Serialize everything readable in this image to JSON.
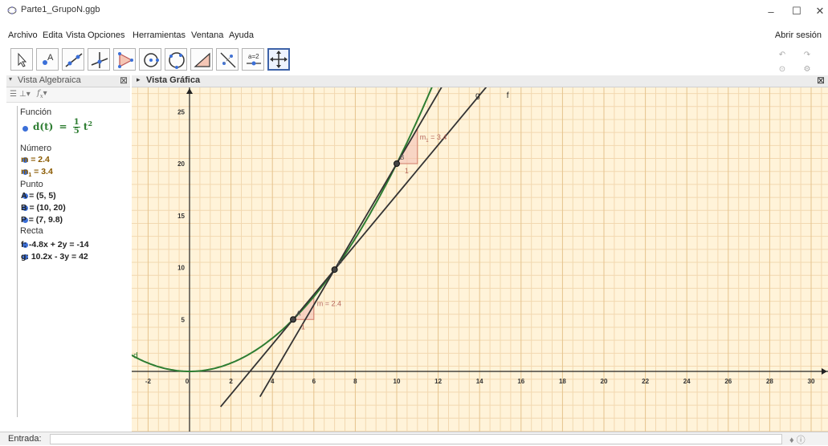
{
  "window": {
    "title": "Parte1_GrupoN.ggb",
    "minimize": "–",
    "maximize": "☐",
    "close": "✕"
  },
  "menu": {
    "items": [
      "Archivo",
      "Edita",
      "Vista",
      "Opciones",
      "Herramientas",
      "Ventana",
      "Ayuda"
    ],
    "signin": "Abrir sesión"
  },
  "toolbar": {
    "tools": [
      "move-tool",
      "point-tool",
      "line-tool",
      "perpendicular-tool",
      "polygon-tool",
      "circle-tool",
      "conic-tool",
      "angle-tool",
      "reflect-tool",
      "slider-tool",
      "move-graphics-tool"
    ],
    "slider_label": "a=2",
    "active_tool": "move-graphics-tool"
  },
  "algebra": {
    "title": "Vista Algebraica",
    "close": "⊠",
    "fx": "f",
    "fx_sub": "x",
    "categories": {
      "funcion": "Función",
      "numero": "Número",
      "punto": "Punto",
      "recta": "Recta"
    },
    "function": {
      "name": "d(t)",
      "eq": "=",
      "num": "1",
      "den": "5",
      "var": "t",
      "exp": "2"
    },
    "numbers": [
      {
        "text": "m = 2.4",
        "color": "#996600"
      },
      {
        "prefix": "m",
        "sub": "1",
        "suffix": " = 3.4",
        "color": "#996600"
      }
    ],
    "points": [
      "A = (5, 5)",
      "B = (10, 20)",
      "P = (7, 9.8)"
    ],
    "lines": [
      "f: -4.8x + 2y = -14",
      "g: 10.2x - 3y = 42"
    ]
  },
  "graphics": {
    "title": "Vista Gráfica",
    "close": "⊠",
    "x_ticks": [
      "-2",
      "0",
      "2",
      "4",
      "6",
      "8",
      "10",
      "12",
      "14",
      "16",
      "18",
      "20",
      "22",
      "24",
      "26",
      "28",
      "30"
    ],
    "y_ticks": [
      "5",
      "10",
      "15",
      "20",
      "25"
    ],
    "labels": {
      "d": "d",
      "g": "g",
      "f": "f",
      "A": "A",
      "B": "B",
      "P": "P",
      "slope_m": "m = 2.4",
      "slope_m1_prefix": "m",
      "slope_m1_sub": "1",
      "slope_m1_suffix": " = 3.4",
      "run1": "1",
      "run2": "1"
    },
    "colors": {
      "background": "#fff3d9",
      "grid_minor": "#f2d8b0",
      "grid_major": "#e5c38d",
      "curve": "#2e7d32",
      "line": "#333333",
      "slope_fill": "#f3c2b5",
      "slope_stroke": "#d27c6a"
    }
  },
  "input": {
    "label": "Entrada:",
    "right_icons": "♦ ⓘ"
  }
}
